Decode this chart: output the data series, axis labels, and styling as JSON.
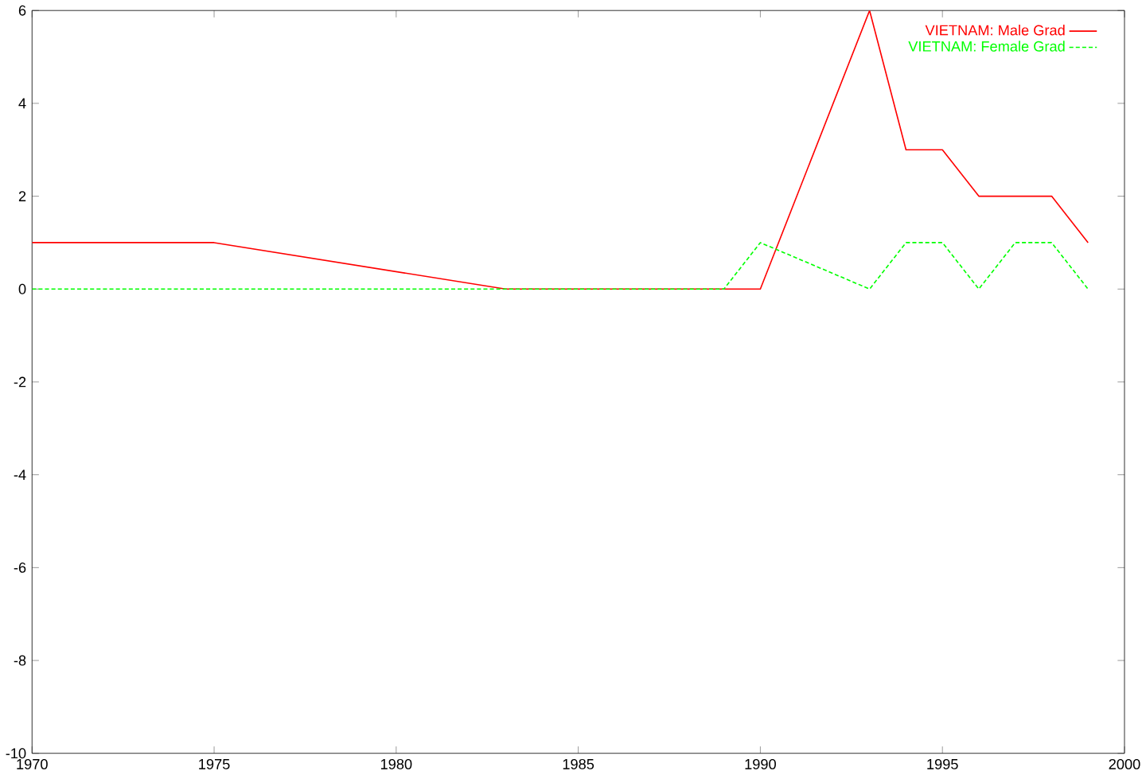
{
  "chart_data": {
    "type": "line",
    "xlim": [
      1970,
      2000
    ],
    "ylim": [
      -10,
      6
    ],
    "xticks": [
      1970,
      1975,
      1980,
      1985,
      1990,
      1995,
      2000
    ],
    "yticks": [
      -10,
      -8,
      -6,
      -4,
      -2,
      0,
      2,
      4,
      6
    ],
    "legend": "top right",
    "grid": false,
    "marker": "none",
    "series": [
      {
        "name": "VIETNAM: Male Grad",
        "color": "#ff0000",
        "line_style": "solid",
        "x": [
          1970,
          1975,
          1983,
          1990,
          1993,
          1994,
          1995,
          1996,
          1998,
          1999
        ],
        "values": [
          1,
          1,
          0,
          0,
          6,
          3,
          3,
          2,
          2,
          1
        ]
      },
      {
        "name": "VIETNAM: Female Grad",
        "color": "#00ff00",
        "line_style": "dashed",
        "x": [
          1970,
          1989,
          1990,
          1993,
          1994,
          1995,
          1996,
          1997,
          1998,
          1999
        ],
        "values": [
          0,
          0,
          1,
          0,
          1,
          1,
          0,
          1,
          1,
          0
        ]
      }
    ]
  }
}
